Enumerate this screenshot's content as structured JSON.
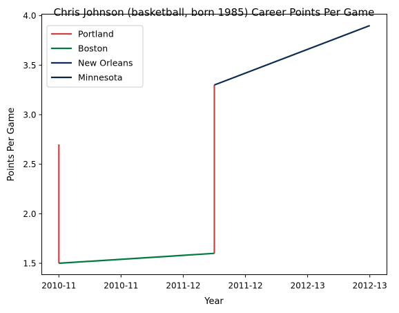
{
  "chart_data": {
    "type": "line",
    "title": "Chris Johnson (basketball, born 1985) Career Points Per Game",
    "xlabel": "Year",
    "ylabel": "Points Per Game",
    "x_tick_labels": [
      "2010-11",
      "2010-11",
      "2011-12",
      "2011-12",
      "2012-13",
      "2012-13"
    ],
    "x_range": [
      -0.11,
      2.11
    ],
    "ylim": [
      1.385,
      4.015
    ],
    "y_ticks": [
      1.5,
      2.0,
      2.5,
      3.0,
      3.5,
      4.0
    ],
    "y_tick_labels": [
      "1.5",
      "2.0",
      "2.5",
      "3.0",
      "3.5",
      "4.0"
    ],
    "grid": false,
    "legend_position": "top-left",
    "series": [
      {
        "name": "Portland",
        "color": "#d04040",
        "x": [
          0,
          0
        ],
        "y": [
          2.7,
          1.5
        ]
      },
      {
        "name": "Portland",
        "color": "#d04040",
        "x": [
          1,
          1
        ],
        "y": [
          1.6,
          3.3
        ]
      },
      {
        "name": "Boston",
        "color": "#007a3d",
        "x": [
          0,
          1
        ],
        "y": [
          1.5,
          1.6
        ]
      },
      {
        "name": "New Orleans",
        "color": "#0c2c56",
        "x": [
          1,
          2
        ],
        "y": [
          3.3,
          3.9
        ]
      },
      {
        "name": "Minnesota",
        "color": "#0c2340",
        "x": [],
        "y": []
      }
    ],
    "legend": [
      {
        "label": "Portland",
        "color": "#d04040"
      },
      {
        "label": "Boston",
        "color": "#007a3d"
      },
      {
        "label": "New Orleans",
        "color": "#0c2c56"
      },
      {
        "label": "Minnesota",
        "color": "#0c2340"
      }
    ]
  }
}
